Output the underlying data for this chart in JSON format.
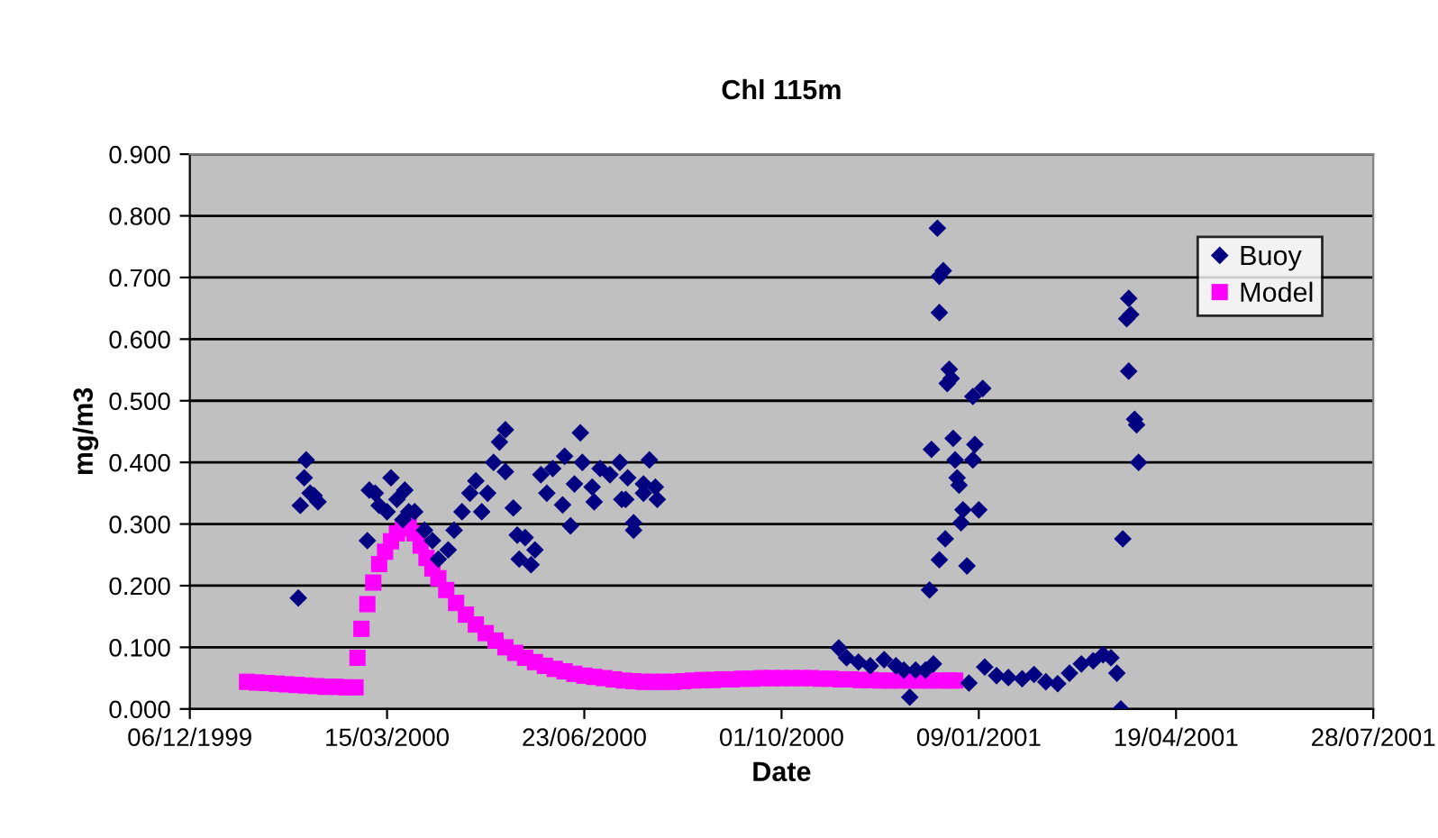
{
  "chart_data": {
    "type": "scatter",
    "title": "Chl 115m",
    "xlabel": "Date",
    "ylabel": "mg/m3",
    "xlim": [
      "1999-12-06",
      "2001-07-28"
    ],
    "xticks": [
      {
        "value": "1999-12-06",
        "label": "06/12/1999"
      },
      {
        "value": "2000-03-15",
        "label": "15/03/2000"
      },
      {
        "value": "2000-06-23",
        "label": "23/06/2000"
      },
      {
        "value": "2000-10-01",
        "label": "01/10/2000"
      },
      {
        "value": "2001-01-09",
        "label": "09/01/2001"
      },
      {
        "value": "2001-04-19",
        "label": "19/04/2001"
      },
      {
        "value": "2001-07-28",
        "label": "28/07/2001"
      }
    ],
    "ylim": [
      0,
      0.9
    ],
    "yticks": [
      {
        "value": 0,
        "label": "0.000"
      },
      {
        "value": 0.1,
        "label": "0.100"
      },
      {
        "value": 0.2,
        "label": "0.200"
      },
      {
        "value": 0.3,
        "label": "0.300"
      },
      {
        "value": 0.4,
        "label": "0.400"
      },
      {
        "value": 0.5,
        "label": "0.500"
      },
      {
        "value": 0.6,
        "label": "0.600"
      },
      {
        "value": 0.7,
        "label": "0.700"
      },
      {
        "value": 0.8,
        "label": "0.800"
      },
      {
        "value": 0.9,
        "label": "0.900"
      }
    ],
    "grid": "y",
    "legend": "right",
    "series": [
      {
        "name": "Buoy",
        "color": "#000080",
        "marker": "diamond",
        "x": [
          "2000-01-30",
          "2000-02-03",
          "2000-02-02",
          "2000-01-31",
          "2000-02-05",
          "2000-02-09",
          "2000-02-07",
          "2000-03-05",
          "2000-03-06",
          "2000-03-09",
          "2000-03-11",
          "2000-03-17",
          "2000-03-15",
          "2000-03-20",
          "2000-03-24",
          "2000-03-26",
          "2000-03-23",
          "2000-03-29",
          "2000-04-03",
          "2000-04-07",
          "2000-04-10",
          "2000-04-15",
          "2000-04-18",
          "2000-04-22",
          "2000-04-26",
          "2000-04-29",
          "2000-05-02",
          "2000-05-05",
          "2000-05-08",
          "2000-05-11",
          "2000-05-14",
          "2000-05-14",
          "2000-05-18",
          "2000-05-20",
          "2000-05-21",
          "2000-05-24",
          "2000-05-27",
          "2000-05-29",
          "2000-06-01",
          "2000-06-04",
          "2000-06-07",
          "2000-06-12",
          "2000-06-13",
          "2000-06-16",
          "2000-06-18",
          "2000-06-21",
          "2000-06-22",
          "2000-06-27",
          "2000-06-28",
          "2000-07-01",
          "2000-07-06",
          "2000-07-11",
          "2000-07-14",
          "2000-07-15",
          "2000-07-18",
          "2000-07-23",
          "2000-07-26",
          "2000-07-29",
          "2000-07-30",
          "2000-07-23",
          "2000-07-18",
          "2000-07-12",
          "2000-10-30",
          "2000-11-03",
          "2000-11-09",
          "2000-11-15",
          "2000-11-22",
          "2000-11-28",
          "2000-12-02",
          "2000-12-08",
          "2000-12-13",
          "2000-12-17",
          "2000-12-05",
          "2000-12-19",
          "2000-12-22",
          "2000-12-20",
          "2000-12-20",
          "2000-12-25",
          "2000-12-24",
          "2000-12-26",
          "2000-12-16",
          "2000-12-27",
          "2000-12-28",
          "2001-01-06",
          "2001-01-11",
          "2001-01-07",
          "2001-01-06",
          "2000-12-29",
          "2000-12-30",
          "2001-01-01",
          "2000-12-31",
          "2001-01-09",
          "2000-12-23",
          "2000-12-20",
          "2001-01-03",
          "2000-12-15",
          "2001-01-04",
          "2001-01-12",
          "2001-01-18",
          "2001-01-24",
          "2001-01-31",
          "2001-02-06",
          "2001-02-12",
          "2001-02-18",
          "2001-02-24",
          "2001-03-02",
          "2001-03-08",
          "2001-03-13",
          "2001-03-17",
          "2001-03-20",
          "2001-03-22",
          "2001-03-26",
          "2001-03-25",
          "2001-03-27",
          "2001-03-26",
          "2001-03-29",
          "2001-03-30",
          "2001-03-31",
          "2001-03-23"
        ],
        "values": [
          0.18,
          0.404,
          0.375,
          0.33,
          0.35,
          0.336,
          0.346,
          0.273,
          0.355,
          0.35,
          0.33,
          0.375,
          0.32,
          0.34,
          0.355,
          0.32,
          0.307,
          0.32,
          0.29,
          0.273,
          0.243,
          0.258,
          0.29,
          0.32,
          0.35,
          0.37,
          0.32,
          0.35,
          0.4,
          0.433,
          0.453,
          0.385,
          0.326,
          0.282,
          0.243,
          0.278,
          0.234,
          0.258,
          0.38,
          0.35,
          0.39,
          0.331,
          0.41,
          0.297,
          0.365,
          0.448,
          0.4,
          0.36,
          0.336,
          0.39,
          0.38,
          0.4,
          0.34,
          0.375,
          0.302,
          0.35,
          0.404,
          0.36,
          0.34,
          0.365,
          0.29,
          0.34,
          0.099,
          0.083,
          0.076,
          0.07,
          0.08,
          0.07,
          0.063,
          0.063,
          0.063,
          0.073,
          0.019,
          0.78,
          0.711,
          0.702,
          0.643,
          0.551,
          0.528,
          0.536,
          0.421,
          0.439,
          0.404,
          0.507,
          0.52,
          0.429,
          0.404,
          0.375,
          0.363,
          0.323,
          0.302,
          0.323,
          0.276,
          0.242,
          0.232,
          0.193,
          0.042,
          0.068,
          0.054,
          0.051,
          0.049,
          0.056,
          0.044,
          0.041,
          0.058,
          0.073,
          0.078,
          0.088,
          0.083,
          0.058,
          0.0,
          0.666,
          0.633,
          0.64,
          0.548,
          0.47,
          0.461,
          0.4,
          0.276
        ]
      },
      {
        "name": "Model",
        "color": "#ff00ff",
        "marker": "square",
        "x": [
          "2000-01-04",
          "2000-01-09",
          "2000-01-14",
          "2000-01-19",
          "2000-01-24",
          "2000-01-29",
          "2000-02-03",
          "2000-02-08",
          "2000-02-13",
          "2000-02-18",
          "2000-02-23",
          "2000-02-28",
          "2000-02-29",
          "2000-03-02",
          "2000-03-05",
          "2000-03-08",
          "2000-03-11",
          "2000-03-14",
          "2000-03-17",
          "2000-03-20",
          "2000-03-23",
          "2000-03-26",
          "2000-03-29",
          "2000-04-01",
          "2000-04-04",
          "2000-04-07",
          "2000-04-10",
          "2000-04-14",
          "2000-04-19",
          "2000-04-24",
          "2000-04-29",
          "2000-05-04",
          "2000-05-09",
          "2000-05-14",
          "2000-05-19",
          "2000-05-24",
          "2000-05-29",
          "2000-06-03",
          "2000-06-08",
          "2000-06-13",
          "2000-06-18",
          "2000-06-23",
          "2000-06-28",
          "2000-07-03",
          "2000-07-08",
          "2000-07-13",
          "2000-07-18",
          "2000-07-23",
          "2000-07-28",
          "2000-08-02",
          "2000-08-07",
          "2000-08-12",
          "2000-08-17",
          "2000-08-22",
          "2000-08-27",
          "2000-09-01",
          "2000-09-06",
          "2000-09-11",
          "2000-09-16",
          "2000-09-21",
          "2000-09-26",
          "2000-10-01",
          "2000-10-06",
          "2000-10-11",
          "2000-10-16",
          "2000-10-21",
          "2000-10-26",
          "2000-10-31",
          "2000-11-05",
          "2000-11-10",
          "2000-11-15",
          "2000-11-20",
          "2000-11-25",
          "2000-11-30",
          "2000-12-05",
          "2000-12-10",
          "2000-12-15",
          "2000-12-20",
          "2000-12-25",
          "2000-12-28"
        ],
        "values": [
          0.044,
          0.043,
          0.042,
          0.041,
          0.04,
          0.039,
          0.038,
          0.037,
          0.036,
          0.036,
          0.035,
          0.035,
          0.083,
          0.13,
          0.17,
          0.205,
          0.235,
          0.255,
          0.272,
          0.285,
          0.293,
          0.297,
          0.285,
          0.265,
          0.245,
          0.228,
          0.212,
          0.193,
          0.172,
          0.153,
          0.137,
          0.123,
          0.111,
          0.1,
          0.091,
          0.083,
          0.076,
          0.07,
          0.065,
          0.061,
          0.057,
          0.054,
          0.052,
          0.05,
          0.048,
          0.046,
          0.045,
          0.044,
          0.044,
          0.044,
          0.044,
          0.045,
          0.046,
          0.047,
          0.047,
          0.048,
          0.048,
          0.049,
          0.049,
          0.05,
          0.05,
          0.05,
          0.05,
          0.05,
          0.05,
          0.049,
          0.049,
          0.048,
          0.048,
          0.047,
          0.047,
          0.046,
          0.046,
          0.046,
          0.046,
          0.046,
          0.046,
          0.046,
          0.046,
          0.046
        ]
      }
    ]
  }
}
